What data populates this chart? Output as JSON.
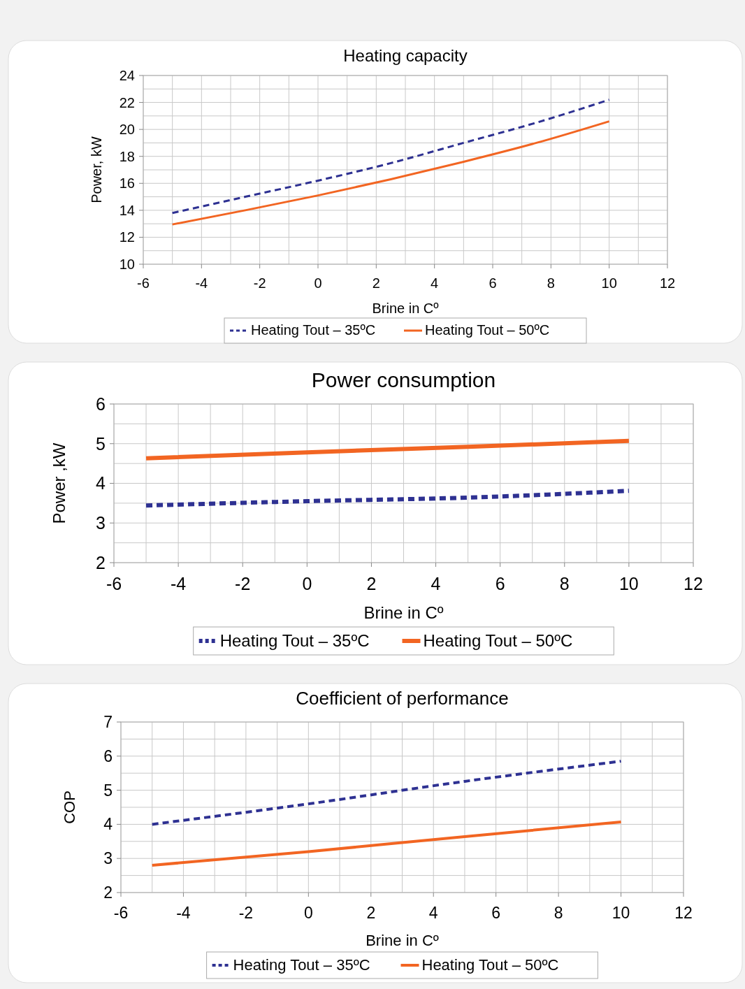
{
  "chart_data": [
    {
      "type": "line",
      "title": "Heating capacity",
      "xlabel": "Brine in Cº",
      "ylabel": "Power, kW",
      "xlim": [
        -6,
        12
      ],
      "xticks": [
        -6,
        -4,
        -2,
        0,
        2,
        4,
        6,
        8,
        10,
        12
      ],
      "ylim": [
        10,
        24
      ],
      "yticks": [
        10,
        12,
        14,
        16,
        18,
        20,
        22,
        24
      ],
      "grid": true,
      "legend": "bottom",
      "marker": "none",
      "series": [
        {
          "name": "Heating Tout – 35ºC",
          "color": "#2e3192",
          "line_style": "dashed",
          "x": [
            -5,
            -2.5,
            0,
            2.5,
            5,
            7.5,
            10
          ],
          "values": [
            13.8,
            15.0,
            16.2,
            17.5,
            19.0,
            20.5,
            22.2
          ]
        },
        {
          "name": "Heating Tout – 50ºC",
          "color": "#f26522",
          "line_style": "solid",
          "x": [
            -5,
            -2.5,
            0,
            2.5,
            5,
            7.5,
            10
          ],
          "values": [
            12.95,
            14.0,
            15.1,
            16.3,
            17.6,
            19.0,
            20.6
          ]
        }
      ]
    },
    {
      "type": "line",
      "title": "Power consumption",
      "xlabel": "Brine in Cº",
      "ylabel": "Power ,kW",
      "xlim": [
        -6,
        12
      ],
      "xticks": [
        -6,
        -4,
        -2,
        0,
        2,
        4,
        6,
        8,
        10,
        12
      ],
      "ylim": [
        2,
        6
      ],
      "yticks": [
        2,
        3,
        4,
        5,
        6
      ],
      "grid": true,
      "legend": "bottom",
      "marker": "none",
      "series": [
        {
          "name": "Heating Tout – 35ºC",
          "color": "#2e3192",
          "line_style": "dashed",
          "x": [
            -5,
            0,
            5,
            10
          ],
          "values": [
            3.44,
            3.55,
            3.64,
            3.81
          ]
        },
        {
          "name": "Heating Tout – 50ºC",
          "color": "#f26522",
          "line_style": "solid",
          "x": [
            -5,
            0,
            5,
            10
          ],
          "values": [
            4.63,
            4.78,
            4.92,
            5.07
          ]
        }
      ]
    },
    {
      "type": "line",
      "title": "Coefficient of performance",
      "xlabel": "Brine in Cº",
      "ylabel": "COP",
      "xlim": [
        -6,
        12
      ],
      "xticks": [
        -6,
        -4,
        -2,
        0,
        2,
        4,
        6,
        8,
        10,
        12
      ],
      "ylim": [
        2,
        7
      ],
      "yticks": [
        2,
        3,
        4,
        5,
        6,
        7
      ],
      "grid": true,
      "legend": "bottom",
      "marker": "none",
      "series": [
        {
          "name": "Heating Tout – 35ºC",
          "color": "#2e3192",
          "line_style": "dashed",
          "x": [
            -5,
            0,
            5,
            10
          ],
          "values": [
            4.0,
            4.6,
            5.26,
            5.85
          ]
        },
        {
          "name": "Heating Tout – 50ºC",
          "color": "#f26522",
          "line_style": "solid",
          "x": [
            -5,
            0,
            5,
            10
          ],
          "values": [
            2.8,
            3.2,
            3.64,
            4.07
          ]
        }
      ]
    }
  ]
}
